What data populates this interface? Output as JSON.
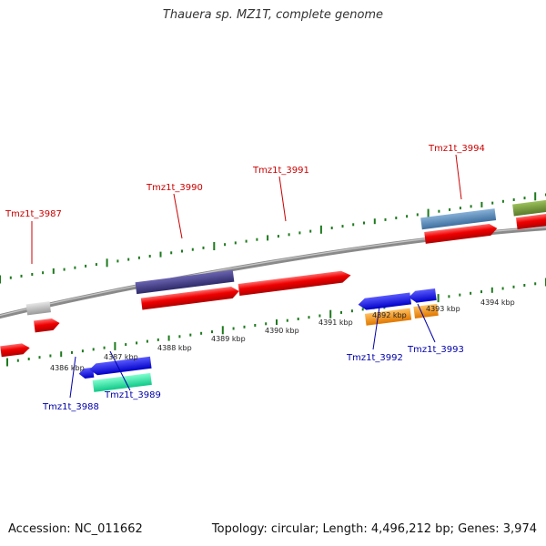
{
  "title": "Thauera sp. MZ1T, complete genome",
  "footer": {
    "accession": "Accession: NC_011662",
    "summary": "Topology: circular; Length: 4,496,212 bp; Genes: 3,974"
  },
  "colors": {
    "top_label": "#cc0000",
    "bottom_label": "#0000aa",
    "tick": "#1d7a1d",
    "backbone": "#888888"
  },
  "scale_labels": [
    "4386 kbp",
    "4387 kbp",
    "4388 kbp",
    "4389 kbp",
    "4390 kbp",
    "4391 kbp",
    "4392 kbp",
    "4393 kbp",
    "4394 kbp"
  ],
  "genes": {
    "Tmz1t_3987": "Tmz1t_3987",
    "Tmz1t_3988": "Tmz1t_3988",
    "Tmz1t_3989": "Tmz1t_3989",
    "Tmz1t_3990": "Tmz1t_3990",
    "Tmz1t_3991": "Tmz1t_3991",
    "Tmz1t_3992": "Tmz1t_3992",
    "Tmz1t_3993": "Tmz1t_3993",
    "Tmz1t_3994": "Tmz1t_3994"
  }
}
